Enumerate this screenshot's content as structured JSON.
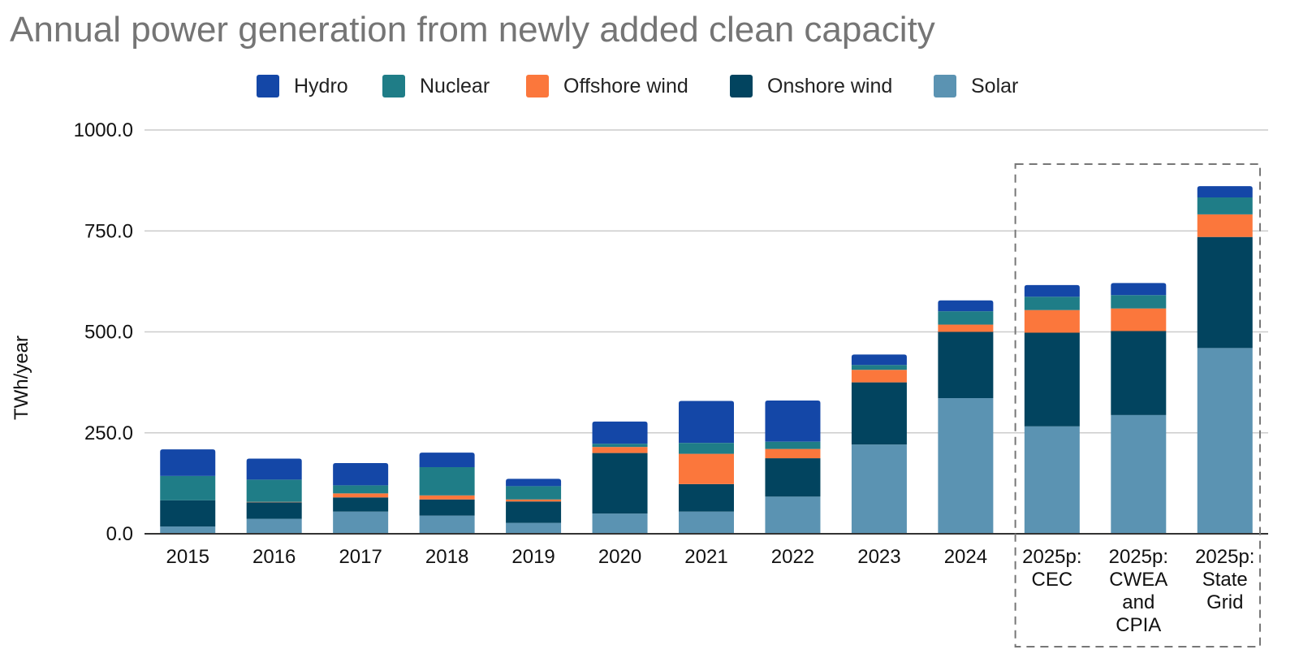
{
  "chart_data": {
    "type": "bar",
    "stacked": true,
    "title": "Annual power generation from newly added clean capacity",
    "xlabel": "",
    "ylabel": "TWh/year",
    "ylim": [
      0,
      1000
    ],
    "yticks": [
      "0.0",
      "250.0",
      "500.0",
      "750.0",
      "1000.0"
    ],
    "grid": true,
    "legend_position": "top",
    "categories": [
      [
        "2015"
      ],
      [
        "2016"
      ],
      [
        "2017"
      ],
      [
        "2018"
      ],
      [
        "2019"
      ],
      [
        "2020"
      ],
      [
        "2021"
      ],
      [
        "2022"
      ],
      [
        "2023"
      ],
      [
        "2024"
      ],
      [
        "2025p:",
        "CEC"
      ],
      [
        "2025p:",
        "CWEA",
        "and",
        "CPIA"
      ],
      [
        "2025p:",
        "State",
        "Grid"
      ]
    ],
    "highlight_box": "projections (last three categories, dashed outline)",
    "series": [
      {
        "name": "Solar",
        "color": "#5b93b2",
        "values": [
          18,
          37,
          55,
          45,
          27,
          50,
          55,
          92,
          221,
          336,
          266,
          294,
          460
        ]
      },
      {
        "name": "Onshore wind",
        "color": "#02445f",
        "values": [
          65,
          41,
          35,
          40,
          53,
          150,
          68,
          95,
          154,
          164,
          232,
          208,
          275
        ]
      },
      {
        "name": "Offshore wind",
        "color": "#fb773c",
        "values": [
          0,
          1,
          10,
          10,
          5,
          15,
          75,
          23,
          31,
          18,
          56,
          56,
          56
        ]
      },
      {
        "name": "Nuclear",
        "color": "#1f7d87",
        "values": [
          60,
          55,
          20,
          70,
          33,
          8,
          27,
          18,
          12,
          33,
          33,
          33,
          42
        ]
      },
      {
        "name": "Hydro",
        "color": "#1447a7",
        "values": [
          66,
          52,
          55,
          36,
          18,
          55,
          104,
          102,
          26,
          27,
          29,
          30,
          28
        ]
      }
    ],
    "legend_order": [
      "Hydro",
      "Nuclear",
      "Offshore wind",
      "Onshore wind",
      "Solar"
    ]
  }
}
